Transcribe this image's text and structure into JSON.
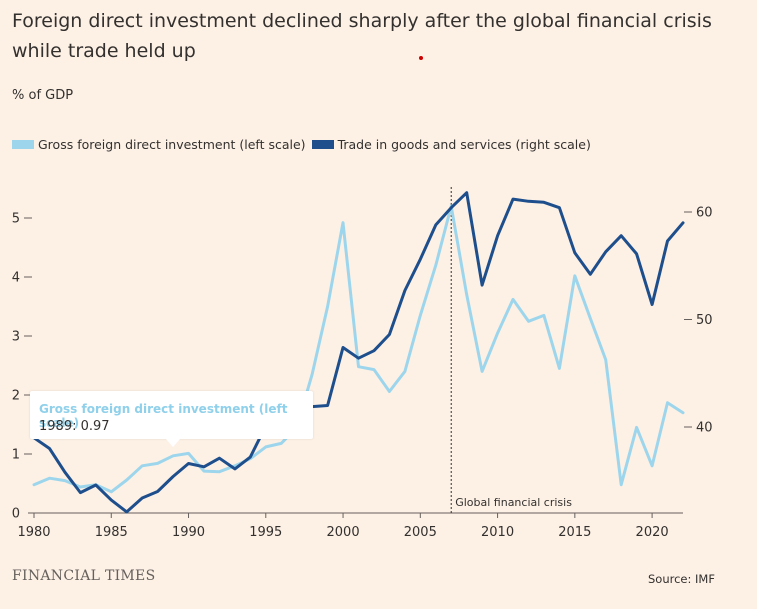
{
  "title": "Foreign direct investment declined sharply after the global financial crisis while trade held up",
  "unit_label": "% of GDP",
  "footer": {
    "brand": "FINANCIAL TIMES",
    "source": "Source: IMF"
  },
  "colors": {
    "background": "#fdf1e6",
    "fdi": "#9dd6ec",
    "trade": "#1e4f8c",
    "axis": "#66605c",
    "red_dot": "#cc0000"
  },
  "tooltip": {
    "series": "Gross foreign direct investment (left scale)",
    "value_text": "1989: 0.97"
  },
  "chart_data": {
    "type": "line",
    "title": "Foreign direct investment declined sharply after the global financial crisis while trade held up",
    "ylabel": "% of GDP",
    "x": [
      1980,
      1981,
      1982,
      1983,
      1984,
      1985,
      1986,
      1987,
      1988,
      1989,
      1990,
      1991,
      1992,
      1993,
      1994,
      1995,
      1996,
      1997,
      1998,
      1999,
      2000,
      2001,
      2002,
      2003,
      2004,
      2005,
      2006,
      2007,
      2008,
      2009,
      2010,
      2011,
      2012,
      2013,
      2014,
      2015,
      2016,
      2017,
      2018,
      2019,
      2020,
      2021,
      2022
    ],
    "xlim": [
      1980,
      2022
    ],
    "x_ticks": [
      1980,
      1985,
      1990,
      1995,
      2000,
      2005,
      2010,
      2015,
      2020
    ],
    "left_axis": {
      "ylim": [
        0,
        5.5
      ],
      "ticks": [
        0,
        1,
        2,
        3,
        4,
        5
      ]
    },
    "right_axis": {
      "ylim": [
        32,
        63
      ],
      "ticks": [
        40,
        50,
        60
      ]
    },
    "series": [
      {
        "name": "Gross foreign direct investment (left scale)",
        "axis": "left",
        "color": "#9dd6ec",
        "values": [
          0.48,
          0.59,
          0.55,
          0.44,
          0.48,
          0.36,
          0.56,
          0.8,
          0.84,
          0.97,
          1.01,
          0.71,
          0.7,
          0.8,
          0.92,
          1.12,
          1.18,
          1.45,
          2.35,
          3.5,
          4.92,
          2.48,
          2.43,
          2.06,
          2.4,
          3.35,
          4.2,
          5.2,
          3.7,
          2.4,
          3.05,
          3.62,
          3.25,
          3.35,
          2.45,
          4.02,
          3.3,
          2.6,
          0.48,
          1.45,
          0.8,
          1.87,
          1.7
        ]
      },
      {
        "name": "Trade in goods and services (right scale)",
        "axis": "right",
        "color": "#1e4f8c",
        "values": [
          39.0,
          38.0,
          35.8,
          33.9,
          34.6,
          33.2,
          32.1,
          33.4,
          34.0,
          35.4,
          36.6,
          36.3,
          37.1,
          36.1,
          37.2,
          40.1,
          40.8,
          40.5,
          41.9,
          42.0,
          47.4,
          46.4,
          47.1,
          48.6,
          52.7,
          55.6,
          58.8,
          60.4,
          61.8,
          53.2,
          57.8,
          61.2,
          61.0,
          60.9,
          60.4,
          56.2,
          54.2,
          56.3,
          57.8,
          56.1,
          51.4,
          57.3,
          59.0
        ]
      }
    ],
    "annotations": [
      {
        "x": 2007,
        "label": "Global financial crisis",
        "style": "dotted-vertical-line"
      }
    ]
  }
}
